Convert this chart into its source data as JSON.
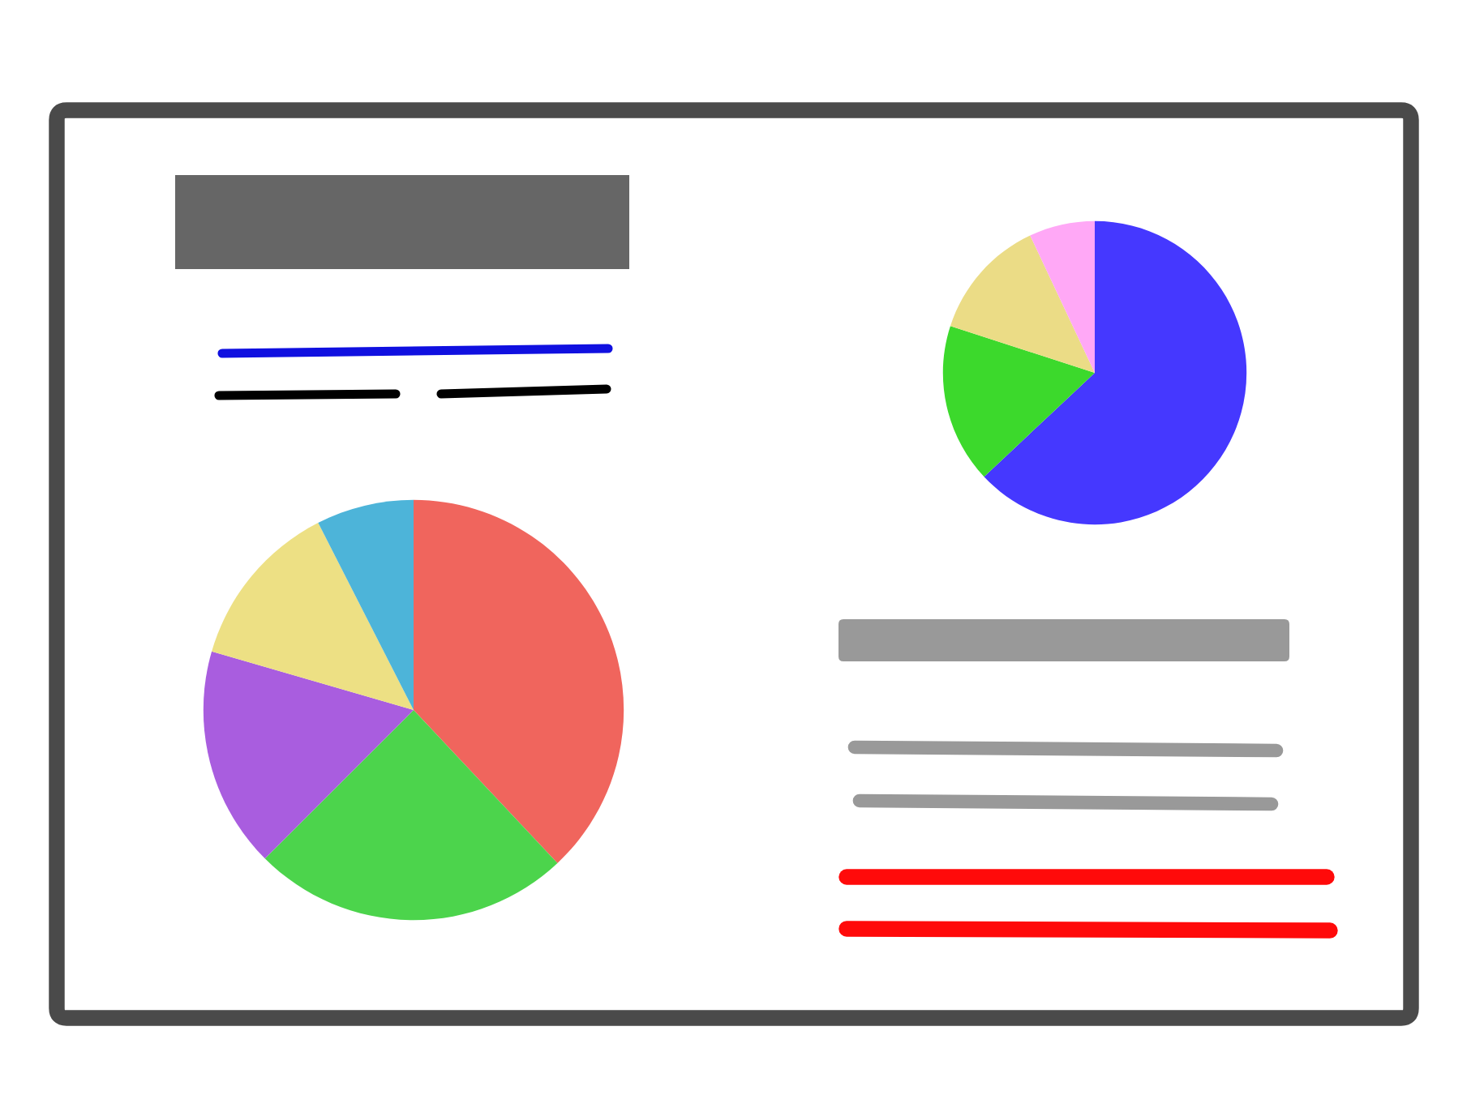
{
  "chart_data": [
    {
      "type": "pie",
      "categories": [
        null,
        null,
        null,
        null,
        null
      ],
      "values": [
        38,
        24.5,
        17,
        13,
        7.5
      ],
      "colors": [
        "#f0655d",
        "#4cd44c",
        "#a95ddf",
        "#ede084",
        "#4db4d9"
      ]
    },
    {
      "type": "pie",
      "categories": [
        null,
        null,
        null,
        null
      ],
      "values": [
        63,
        17,
        13,
        7
      ],
      "colors": [
        "#4538ff",
        "#3cd92c",
        "#ebdc86",
        "#ffa8f6"
      ]
    }
  ]
}
